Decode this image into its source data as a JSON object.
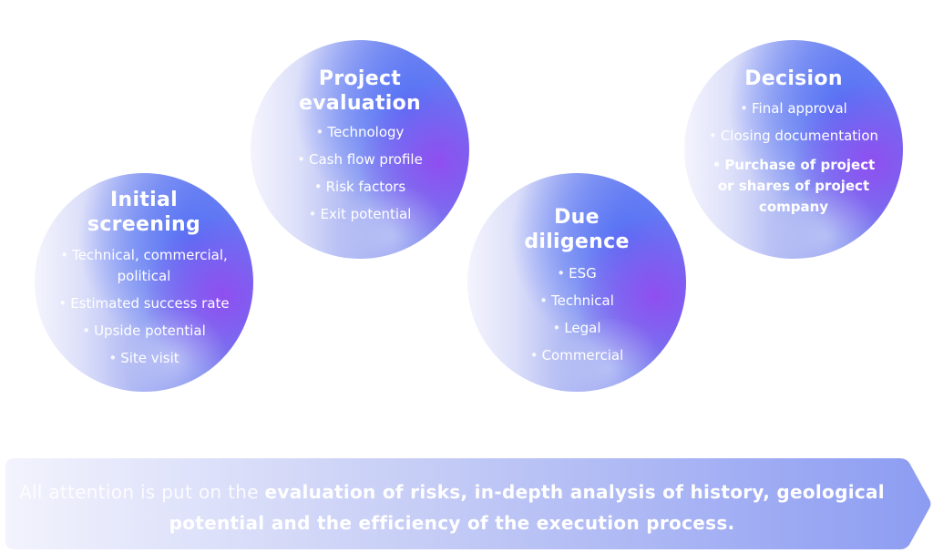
{
  "stages": [
    {
      "title": [
        "Initial",
        "screening"
      ],
      "items": [
        "Technical, commercial, political",
        "Estimated success rate",
        "Upside potential",
        "Site visit"
      ]
    },
    {
      "title": [
        "Project",
        "evaluation"
      ],
      "items": [
        "Technology",
        "Cash flow profile",
        "Risk factors",
        "Exit potential"
      ]
    },
    {
      "title": [
        "Due",
        "diligence"
      ],
      "items": [
        "ESG",
        "Technical",
        "Legal",
        "Commercial"
      ]
    },
    {
      "title": [
        "Decision"
      ],
      "items": [
        "Final approval",
        "Closing documentation",
        "Purchase of project or shares of project company"
      ]
    }
  ],
  "banner": {
    "light_text": "All attention is put on the ",
    "strong_text": "evaluation of risks, in-depth analysis of history, geological potential and the efficiency of the execution process."
  },
  "colors": {
    "circle_light": "#f4f4fd",
    "circle_blue": "#6a74ee",
    "circle_violet": "#9646f0",
    "banner_left": "#f2f3fd",
    "banner_right": "#8c9cf2"
  }
}
